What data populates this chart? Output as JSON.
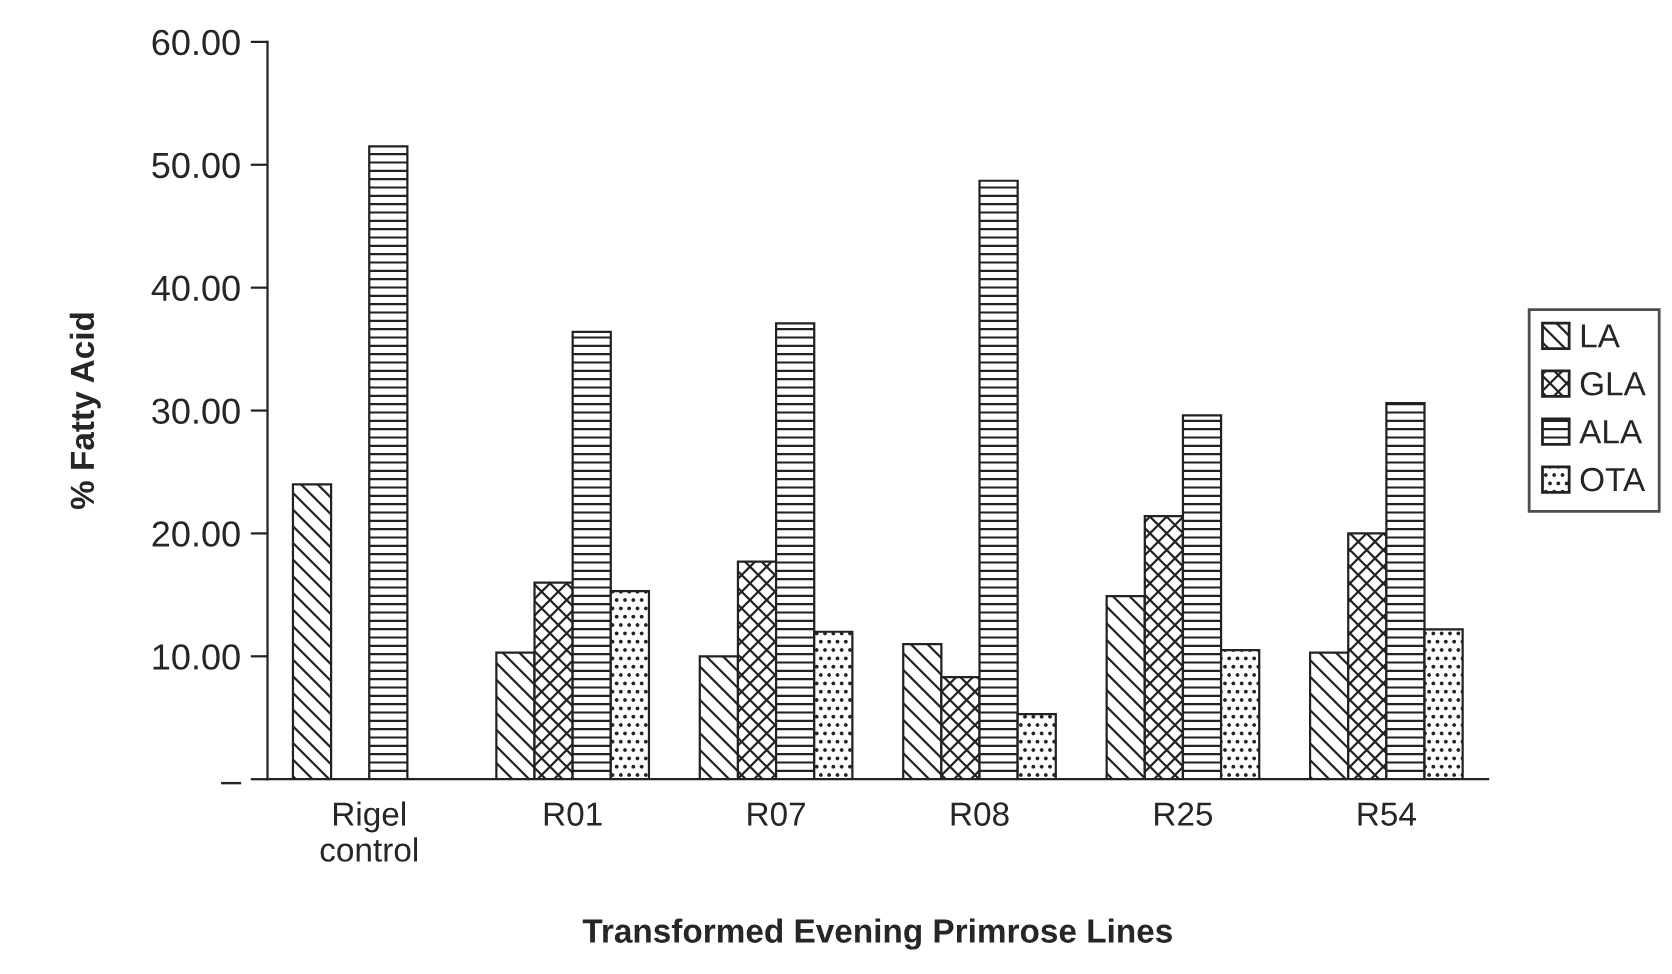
{
  "chart_data": {
    "type": "bar",
    "xlabel": "Transformed Evening Primrose Lines",
    "ylabel": "% Fatty Acid",
    "categories": [
      "Rigel\ncontrol",
      "R01",
      "R07",
      "R08",
      "R25",
      "R54"
    ],
    "series": [
      {
        "name": "LA",
        "color": "#222222",
        "values": [
          24.0,
          10.3,
          10.0,
          11.0,
          14.9,
          10.3
        ]
      },
      {
        "name": "GLA",
        "color": "#222222",
        "values": [
          0,
          16.0,
          17.7,
          8.3,
          21.4,
          20.0
        ]
      },
      {
        "name": "ALA",
        "color": "#222222",
        "values": [
          51.5,
          36.4,
          37.1,
          48.7,
          29.6,
          30.6
        ]
      },
      {
        "name": "OTA",
        "color": "#222222",
        "values": [
          0,
          15.3,
          12.0,
          5.3,
          10.5,
          12.2
        ]
      }
    ],
    "ylim": [
      0,
      60
    ],
    "yticks": [
      {
        "value": 0,
        "label": "–"
      },
      {
        "value": 10,
        "label": "10.00"
      },
      {
        "value": 20,
        "label": "20.00"
      },
      {
        "value": 30,
        "label": "30.00"
      },
      {
        "value": 40,
        "label": "40.00"
      },
      {
        "value": 50,
        "label": "50.00"
      },
      {
        "value": 60,
        "label": "60.00"
      }
    ],
    "grid": false,
    "legend": "right"
  }
}
